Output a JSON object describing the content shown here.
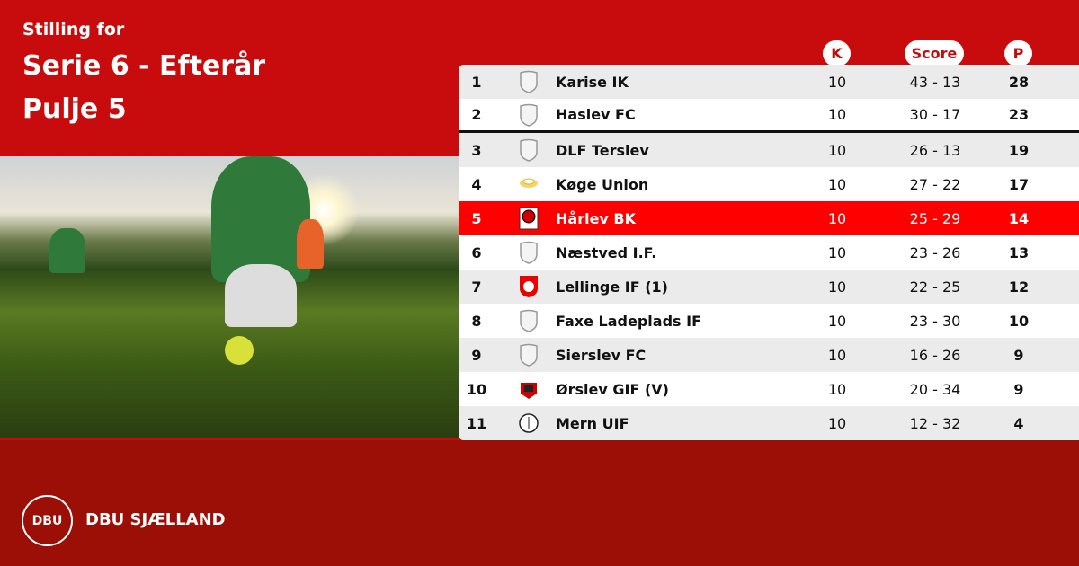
{
  "header": {
    "subtitle": "Stilling for",
    "title": "Serie 6 - Efterår",
    "pool": "Pulje 5"
  },
  "columns": {
    "k": "K",
    "score": "Score",
    "p": "P"
  },
  "colors": {
    "primary_red": "#c80c0e",
    "dark_red": "#9c0f07",
    "highlight": "#fe0000"
  },
  "standings": [
    {
      "pos": "1",
      "team": "Karise IK",
      "k": "10",
      "score": "43 - 13",
      "p": "28",
      "logo": "default-shield-icon"
    },
    {
      "pos": "2",
      "team": "Haslev FC",
      "k": "10",
      "score": "30 - 17",
      "p": "23",
      "logo": "default-shield-icon"
    },
    {
      "pos": "3",
      "team": "DLF Terslev",
      "k": "10",
      "score": "26 - 13",
      "p": "19",
      "logo": "default-shield-icon"
    },
    {
      "pos": "4",
      "team": "Køge Union",
      "k": "10",
      "score": "27 - 22",
      "p": "17",
      "logo": "koge-union-crest-icon"
    },
    {
      "pos": "5",
      "team": "Hårlev BK",
      "k": "10",
      "score": "25 - 29",
      "p": "14",
      "logo": "harlev-bk-crest-icon",
      "highlight": true
    },
    {
      "pos": "6",
      "team": "Næstved I.F.",
      "k": "10",
      "score": "23 - 26",
      "p": "13",
      "logo": "default-shield-icon"
    },
    {
      "pos": "7",
      "team": "Lellinge IF (1)",
      "k": "10",
      "score": "22 - 25",
      "p": "12",
      "logo": "lellinge-crest-icon"
    },
    {
      "pos": "8",
      "team": "Faxe Ladeplads IF",
      "k": "10",
      "score": "23 - 30",
      "p": "10",
      "logo": "default-shield-icon"
    },
    {
      "pos": "9",
      "team": "Sierslev FC",
      "k": "10",
      "score": "16 - 26",
      "p": "9",
      "logo": "default-shield-icon"
    },
    {
      "pos": "10",
      "team": "Ørslev GIF (V)",
      "k": "10",
      "score": "20 - 34",
      "p": "9",
      "logo": "orslev-crest-icon"
    },
    {
      "pos": "11",
      "team": "Mern UIF",
      "k": "10",
      "score": "12 - 32",
      "p": "4",
      "logo": "mern-crest-icon"
    }
  ],
  "footer": {
    "org": "DBU SJÆLLAND",
    "logo_text": "DBU"
  }
}
